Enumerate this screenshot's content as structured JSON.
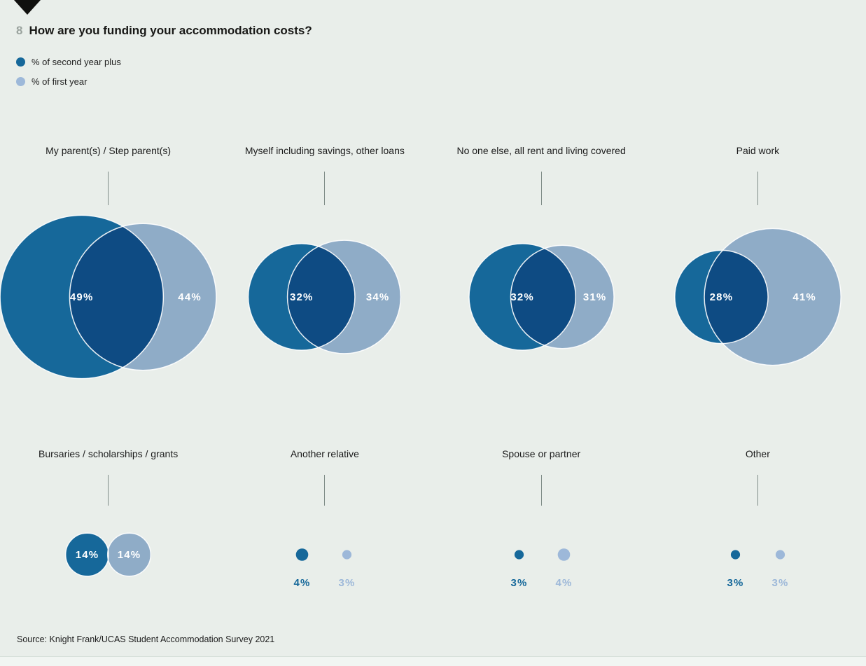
{
  "page": {
    "question_number": "8",
    "title": "How are you funding your accommodation costs?",
    "source": "Source: Knight Frank/UCAS Student Accommodation Survey 2021"
  },
  "legend": [
    {
      "label": "% of second year plus",
      "color": "#16689a"
    },
    {
      "label": "% of first year",
      "color": "#9db8d9"
    }
  ],
  "chart_data": {
    "type": "venn-bubbles",
    "title": "How are you funding your accommodation costs?",
    "series": [
      "% of second year plus",
      "% of first year"
    ],
    "colors": {
      "second_year_plus": "#16689a",
      "first_year": "#9db8d9"
    },
    "value_unit": "%",
    "legend_position": "top-left",
    "categories": [
      {
        "label": "My parent(s) / Step parent(s)",
        "second_year_plus": 49,
        "first_year": 44
      },
      {
        "label": "Myself including savings, other loans",
        "second_year_plus": 32,
        "first_year": 34
      },
      {
        "label": "No one else, all rent and living covered",
        "second_year_plus": 32,
        "first_year": 31
      },
      {
        "label": "Paid work",
        "second_year_plus": 28,
        "first_year": 41
      },
      {
        "label": "Bursaries / scholarships / grants",
        "second_year_plus": 14,
        "first_year": 14
      },
      {
        "label": "Another relative",
        "second_year_plus": 4,
        "first_year": 3
      },
      {
        "label": "Spouse or partner",
        "second_year_plus": 3,
        "first_year": 4
      },
      {
        "label": "Other",
        "second_year_plus": 3,
        "first_year": 3
      }
    ]
  }
}
